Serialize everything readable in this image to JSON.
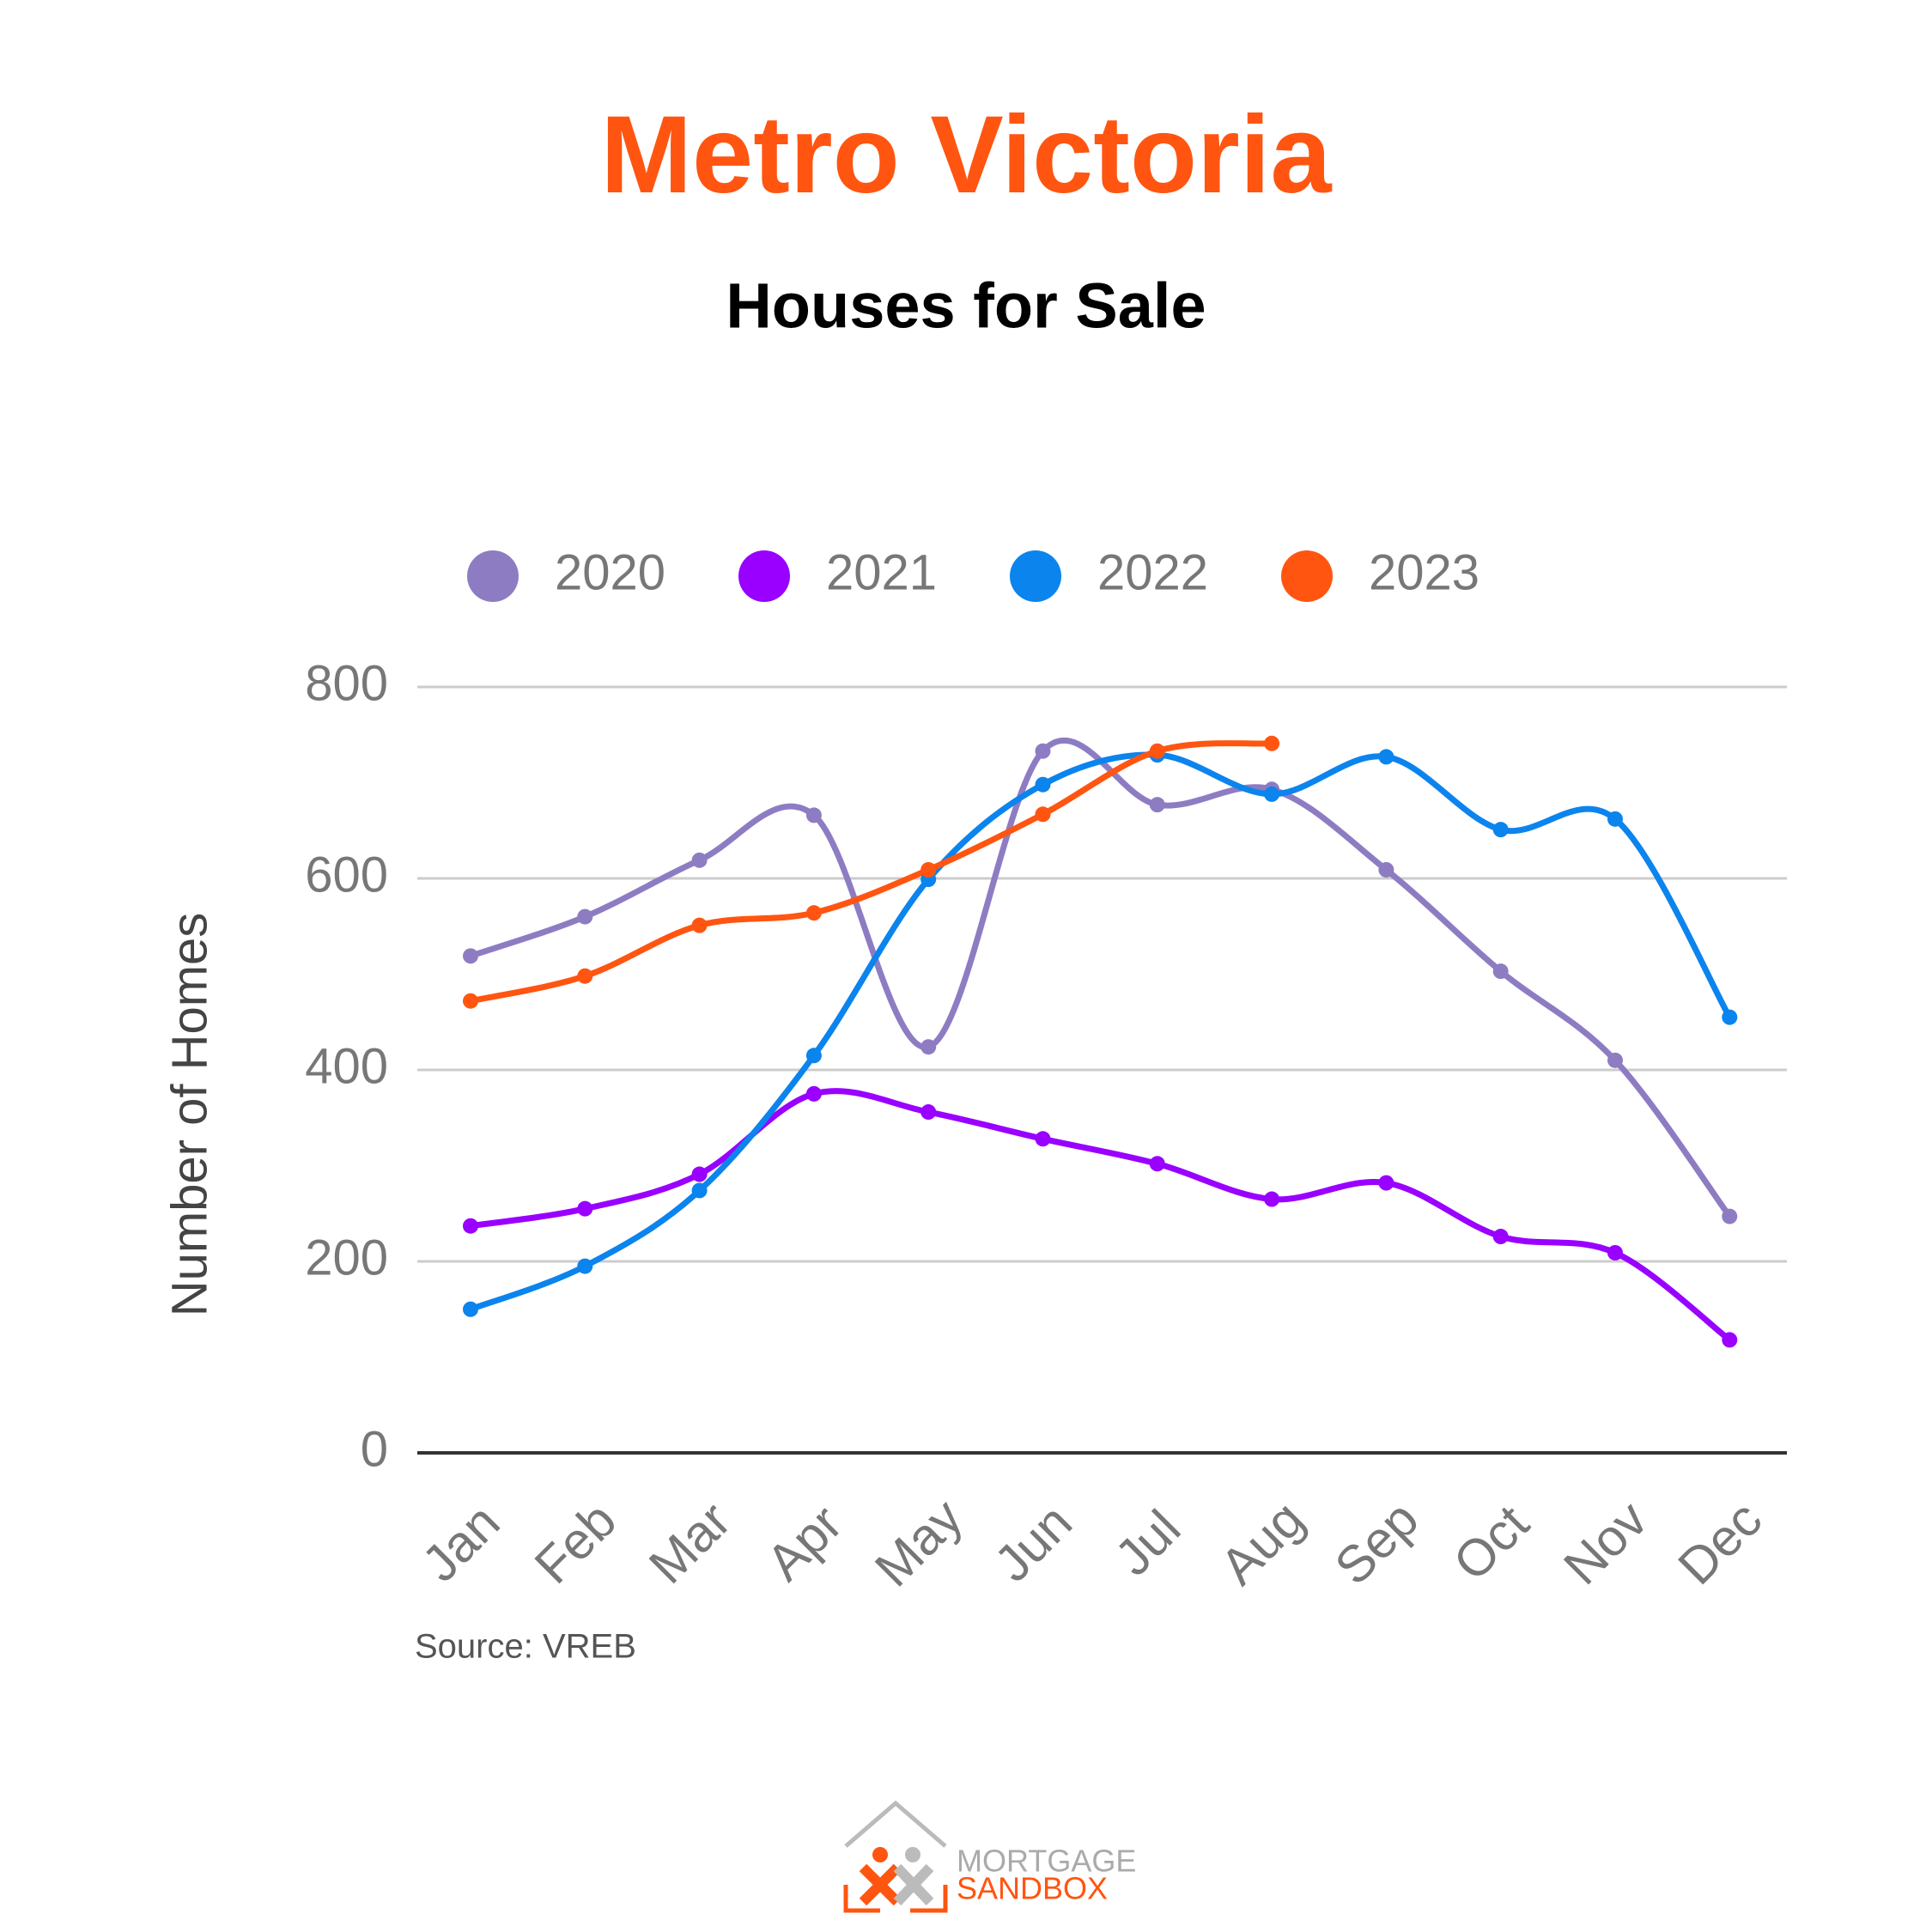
{
  "chart_data": {
    "type": "line",
    "title": "Metro Victoria",
    "subtitle": "Houses for Sale",
    "y_label": "Number of Homes",
    "source": "Source: VREB",
    "logo": {
      "line1": "MORTGAGE",
      "line2": "SANDBOX"
    },
    "categories": [
      "Jan",
      "Feb",
      "Mar",
      "Apr",
      "May",
      "Jun",
      "Jul",
      "Aug",
      "Sep",
      "Oct",
      "Nov",
      "Dec"
    ],
    "series": [
      {
        "name": "2020",
        "color": "#8e7cc3",
        "values": [
          519,
          560,
          619,
          666,
          424,
          733,
          677,
          693,
          609,
          503,
          410,
          247
        ]
      },
      {
        "name": "2021",
        "color": "#9900ff",
        "values": [
          237,
          255,
          291,
          375,
          356,
          328,
          302,
          265,
          282,
          226,
          209,
          118
        ]
      },
      {
        "name": "2022",
        "color": "#0b84ee",
        "values": [
          150,
          195,
          274,
          415,
          599,
          698,
          729,
          688,
          727,
          651,
          662,
          455
        ]
      },
      {
        "name": "2023",
        "color": "#ff5511",
        "values": [
          472,
          498,
          551,
          564,
          609,
          667,
          733,
          741,
          null,
          null,
          null,
          null
        ]
      }
    ],
    "ylim": [
      0,
      800
    ],
    "yticks": [
      0,
      200,
      400,
      600,
      800
    ],
    "grid": true,
    "legend": "top"
  }
}
